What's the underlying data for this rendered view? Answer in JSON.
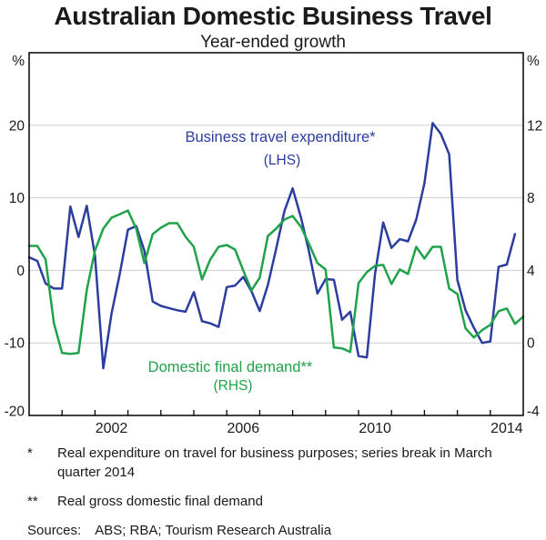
{
  "title": "Australian Domestic Business Travel",
  "subtitle": "Year-ended growth",
  "chart_data": {
    "type": "line",
    "x_range": [
      2000,
      2015
    ],
    "x_tick_years": [
      2001,
      2002,
      2003,
      2004,
      2005,
      2006,
      2007,
      2008,
      2009,
      2010,
      2011,
      2012,
      2013,
      2014
    ],
    "x_labels": [
      {
        "text": "2002",
        "t": 2002.5
      },
      {
        "text": "2006",
        "t": 2006.5
      },
      {
        "text": "2010",
        "t": 2010.5
      },
      {
        "text": "2014",
        "t": 2014.5
      }
    ],
    "left_axis": {
      "unit": "%",
      "min": -20,
      "max": 30,
      "ticks": [
        {
          "v": 20,
          "label": "20"
        },
        {
          "v": 10,
          "label": "10"
        },
        {
          "v": 0,
          "label": "0"
        },
        {
          "v": -10,
          "label": "-10"
        },
        {
          "v": -20,
          "label": "-20"
        }
      ]
    },
    "right_axis": {
      "unit": "%",
      "min": -4,
      "max": 16,
      "ticks": [
        {
          "v": 12,
          "label": "12"
        },
        {
          "v": 8,
          "label": "8"
        },
        {
          "v": 4,
          "label": "4"
        },
        {
          "v": 0,
          "label": "0"
        },
        {
          "v": -4,
          "label": "-4"
        }
      ]
    },
    "gridlines_left_values": [
      20,
      10,
      0,
      -10
    ],
    "grid_color": "#cdcdcd",
    "axis_color": "#000000",
    "series": [
      {
        "id": "business-travel-expenditure",
        "label": "Business travel expenditure*",
        "axis_note": "(LHS)",
        "axis": "left",
        "color": "#2B3D9E",
        "frequency": "quarterly",
        "start": 2000.0,
        "step": 0.25,
        "values": [
          1.8,
          1.3,
          -1.8,
          -2.5,
          -2.5,
          8.8,
          4.6,
          8.9,
          2.0,
          -13.5,
          -6.0,
          -0.5,
          5.6,
          6.1,
          2.7,
          -4.3,
          -4.9,
          -5.2,
          -5.5,
          -5.7,
          -3.0,
          -7.0,
          -7.3,
          -7.8,
          -2.3,
          -2.1,
          -0.9,
          -2.9,
          -5.6,
          -2.0,
          3.0,
          8.2,
          11.3,
          7.3,
          2.5,
          -3.2,
          -1.2,
          -1.3,
          -6.8,
          -5.7,
          -11.8,
          -12.0,
          -0.5,
          6.6,
          3.1,
          4.3,
          4.0,
          7.0,
          12.0,
          20.3,
          18.8,
          16.0,
          -1.3,
          -5.5,
          -7.9,
          -10.0,
          -9.8,
          0.5,
          0.8,
          5.0
        ]
      },
      {
        "id": "domestic-final-demand",
        "label": "Domestic final demand**",
        "axis_note": "(RHS)",
        "axis": "right",
        "color": "#1FA24A",
        "frequency": "quarterly",
        "start": 2000.0,
        "step": 0.25,
        "values": [
          5.35,
          5.35,
          4.6,
          1.1,
          -0.55,
          -0.6,
          -0.55,
          2.9,
          5.1,
          6.3,
          6.9,
          7.1,
          7.3,
          6.3,
          4.4,
          6.0,
          6.35,
          6.6,
          6.6,
          5.85,
          5.3,
          3.5,
          4.6,
          5.3,
          5.4,
          5.15,
          4.0,
          2.9,
          3.6,
          5.9,
          6.3,
          6.8,
          7.0,
          6.4,
          5.45,
          4.4,
          4.05,
          -0.25,
          -0.3,
          -0.5,
          3.3,
          3.9,
          4.25,
          4.3,
          3.25,
          4.05,
          3.8,
          5.3,
          4.65,
          5.3,
          5.3,
          3.0,
          2.7,
          0.8,
          0.3,
          0.7,
          1.0,
          1.75,
          1.9,
          1.05,
          1.45
        ]
      }
    ]
  },
  "footnotes": [
    {
      "marker": "*",
      "text": "Real expenditure on travel for business purposes; series break in March quarter 2014"
    },
    {
      "marker": "**",
      "text": "Real gross domestic final demand"
    }
  ],
  "sources": {
    "label": "Sources:",
    "text": "ABS; RBA; Tourism Research Australia"
  }
}
